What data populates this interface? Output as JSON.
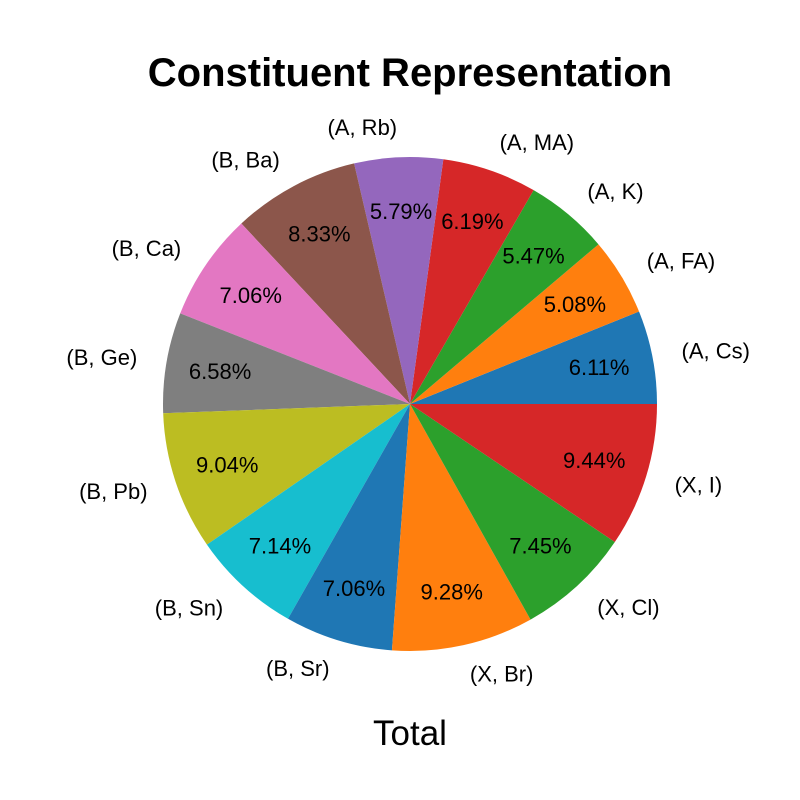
{
  "chart_data": {
    "type": "pie",
    "title": "Constituent Representation",
    "xlabel": "Total",
    "start_angle_deg": 0,
    "direction": "counterclockwise",
    "slices": [
      {
        "label": "(A, Cs)",
        "value": 6.11,
        "pct_text": "6.11%",
        "color": "#1f77b4"
      },
      {
        "label": "(A, FA)",
        "value": 5.08,
        "pct_text": "5.08%",
        "color": "#ff7f0e"
      },
      {
        "label": "(A, K)",
        "value": 5.47,
        "pct_text": "5.47%",
        "color": "#2ca02c"
      },
      {
        "label": "(A, MA)",
        "value": 6.19,
        "pct_text": "6.19%",
        "color": "#d62728"
      },
      {
        "label": "(A, Rb)",
        "value": 5.79,
        "pct_text": "5.79%",
        "color": "#9467bd"
      },
      {
        "label": "(B, Ba)",
        "value": 8.33,
        "pct_text": "8.33%",
        "color": "#8c564b"
      },
      {
        "label": "(B, Ca)",
        "value": 7.06,
        "pct_text": "7.06%",
        "color": "#e377c2"
      },
      {
        "label": "(B, Ge)",
        "value": 6.58,
        "pct_text": "6.58%",
        "color": "#7f7f7f"
      },
      {
        "label": "(B, Pb)",
        "value": 9.04,
        "pct_text": "9.04%",
        "color": "#bcbd22"
      },
      {
        "label": "(B, Sn)",
        "value": 7.14,
        "pct_text": "7.14%",
        "color": "#17becf"
      },
      {
        "label": "(B, Sr)",
        "value": 7.06,
        "pct_text": "7.06%",
        "color": "#1f77b4"
      },
      {
        "label": "(X, Br)",
        "value": 9.28,
        "pct_text": "9.28%",
        "color": "#ff7f0e"
      },
      {
        "label": "(X, Cl)",
        "value": 7.45,
        "pct_text": "7.45%",
        "color": "#2ca02c"
      },
      {
        "label": "(X, I)",
        "value": 9.44,
        "pct_text": "9.44%",
        "color": "#d62728"
      }
    ]
  }
}
